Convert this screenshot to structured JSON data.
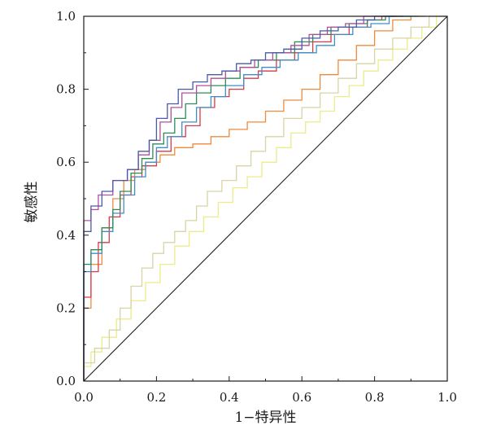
{
  "chart_data": {
    "type": "line",
    "title": "",
    "xlabel": "1−特异性",
    "ylabel": "敏感性",
    "xlim": [
      0,
      1
    ],
    "ylim": [
      0,
      1
    ],
    "xticks": [
      "0.0",
      "0.2",
      "0.4",
      "0.6",
      "0.8",
      "1.0"
    ],
    "yticks": [
      "0.0",
      "0.2",
      "0.4",
      "0.6",
      "0.8",
      "1.0"
    ],
    "grid": false,
    "legend": "none",
    "reference_line": {
      "x": [
        0,
        1
      ],
      "y": [
        0,
        1
      ],
      "color": "#222222"
    },
    "series": [
      {
        "color": "#4a5aa8",
        "x": [
          0,
          0,
          0.02,
          0.02,
          0.05,
          0.08,
          0.12,
          0.15,
          0.18,
          0.2,
          0.23,
          0.26,
          0.3,
          0.34,
          0.38,
          0.42,
          0.46,
          0.5,
          0.55,
          0.6,
          0.65,
          0.7,
          0.75,
          0.8,
          0.85,
          0.88
        ],
        "y": [
          0,
          0.38,
          0.41,
          0.45,
          0.48,
          0.52,
          0.55,
          0.58,
          0.63,
          0.66,
          0.72,
          0.76,
          0.8,
          0.82,
          0.84,
          0.85,
          0.87,
          0.88,
          0.9,
          0.91,
          0.94,
          0.96,
          0.97,
          0.99,
          1.0,
          1.0
        ]
      },
      {
        "color": "#b0509a",
        "x": [
          0,
          0,
          0.02,
          0.04,
          0.08,
          0.12,
          0.15,
          0.18,
          0.21,
          0.24,
          0.27,
          0.31,
          0.35,
          0.39,
          0.43,
          0.47,
          0.52,
          0.57,
          0.62,
          0.67,
          0.72,
          0.77,
          0.82,
          0.86
        ],
        "y": [
          0,
          0.4,
          0.44,
          0.47,
          0.51,
          0.55,
          0.58,
          0.62,
          0.66,
          0.71,
          0.75,
          0.79,
          0.81,
          0.83,
          0.85,
          0.86,
          0.88,
          0.9,
          0.92,
          0.95,
          0.97,
          0.98,
          1.0,
          1.0
        ]
      },
      {
        "color": "#2e8b5a",
        "x": [
          0,
          0,
          0.02,
          0.05,
          0.08,
          0.1,
          0.13,
          0.16,
          0.19,
          0.22,
          0.25,
          0.28,
          0.31,
          0.35,
          0.39,
          0.43,
          0.48,
          0.53,
          0.58,
          0.63,
          0.68,
          0.73,
          0.78,
          0.83,
          0.88,
          0.9
        ],
        "y": [
          0,
          0.26,
          0.32,
          0.36,
          0.42,
          0.47,
          0.52,
          0.57,
          0.61,
          0.65,
          0.68,
          0.72,
          0.76,
          0.79,
          0.81,
          0.83,
          0.86,
          0.88,
          0.9,
          0.93,
          0.95,
          0.97,
          0.98,
          0.99,
          1.0,
          1.0
        ]
      },
      {
        "color": "#3f8fc6",
        "x": [
          0,
          0,
          0.02,
          0.05,
          0.08,
          0.11,
          0.14,
          0.17,
          0.2,
          0.23,
          0.27,
          0.31,
          0.35,
          0.39,
          0.44,
          0.49,
          0.54,
          0.59,
          0.64,
          0.69,
          0.74,
          0.79,
          0.84,
          0.89,
          0.92
        ],
        "y": [
          0,
          0.23,
          0.3,
          0.35,
          0.41,
          0.46,
          0.51,
          0.56,
          0.6,
          0.64,
          0.67,
          0.71,
          0.75,
          0.78,
          0.81,
          0.84,
          0.86,
          0.88,
          0.9,
          0.92,
          0.95,
          0.97,
          0.98,
          1.0,
          1.0
        ]
      },
      {
        "color": "#d83a4c",
        "x": [
          0,
          0,
          0.02,
          0.04,
          0.07,
          0.1,
          0.13,
          0.16,
          0.2,
          0.24,
          0.28,
          0.32,
          0.36,
          0.4,
          0.44,
          0.48,
          0.53,
          0.58,
          0.63,
          0.68,
          0.73,
          0.78,
          0.82,
          0.86
        ],
        "y": [
          0,
          0.17,
          0.23,
          0.3,
          0.38,
          0.45,
          0.51,
          0.56,
          0.59,
          0.63,
          0.67,
          0.7,
          0.75,
          0.78,
          0.8,
          0.83,
          0.85,
          0.88,
          0.9,
          0.93,
          0.95,
          0.97,
          0.99,
          1.0
        ]
      },
      {
        "color": "#ee8a3c",
        "x": [
          0,
          0,
          0.02,
          0.05,
          0.08,
          0.11,
          0.14,
          0.17,
          0.21,
          0.25,
          0.3,
          0.35,
          0.4,
          0.45,
          0.5,
          0.55,
          0.6,
          0.65,
          0.7,
          0.75,
          0.8,
          0.85,
          0.9,
          0.94
        ],
        "y": [
          0,
          0.09,
          0.2,
          0.32,
          0.42,
          0.5,
          0.55,
          0.58,
          0.6,
          0.62,
          0.64,
          0.65,
          0.67,
          0.69,
          0.71,
          0.74,
          0.77,
          0.8,
          0.84,
          0.88,
          0.92,
          0.96,
          0.99,
          1.0
        ]
      },
      {
        "color": "#d8d4a6",
        "x": [
          0,
          0,
          0.03,
          0.07,
          0.1,
          0.13,
          0.16,
          0.19,
          0.22,
          0.25,
          0.28,
          0.31,
          0.34,
          0.38,
          0.42,
          0.46,
          0.5,
          0.55,
          0.6,
          0.65,
          0.7,
          0.75,
          0.8,
          0.85,
          0.9,
          0.95,
          1.0
        ],
        "y": [
          0,
          0.02,
          0.05,
          0.09,
          0.14,
          0.2,
          0.26,
          0.31,
          0.35,
          0.38,
          0.41,
          0.44,
          0.48,
          0.52,
          0.55,
          0.59,
          0.63,
          0.67,
          0.72,
          0.75,
          0.79,
          0.83,
          0.87,
          0.91,
          0.94,
          0.97,
          1.0
        ]
      },
      {
        "color": "#ecec8a",
        "x": [
          0,
          0,
          0.02,
          0.05,
          0.09,
          0.13,
          0.17,
          0.21,
          0.25,
          0.29,
          0.33,
          0.37,
          0.41,
          0.45,
          0.49,
          0.53,
          0.57,
          0.61,
          0.65,
          0.69,
          0.73,
          0.77,
          0.81,
          0.85,
          0.89,
          0.93,
          0.97,
          1.0
        ],
        "y": [
          0,
          0.01,
          0.04,
          0.08,
          0.12,
          0.17,
          0.22,
          0.27,
          0.32,
          0.37,
          0.41,
          0.45,
          0.49,
          0.53,
          0.56,
          0.6,
          0.64,
          0.68,
          0.71,
          0.74,
          0.78,
          0.81,
          0.85,
          0.88,
          0.91,
          0.94,
          0.97,
          1.0
        ]
      }
    ]
  }
}
